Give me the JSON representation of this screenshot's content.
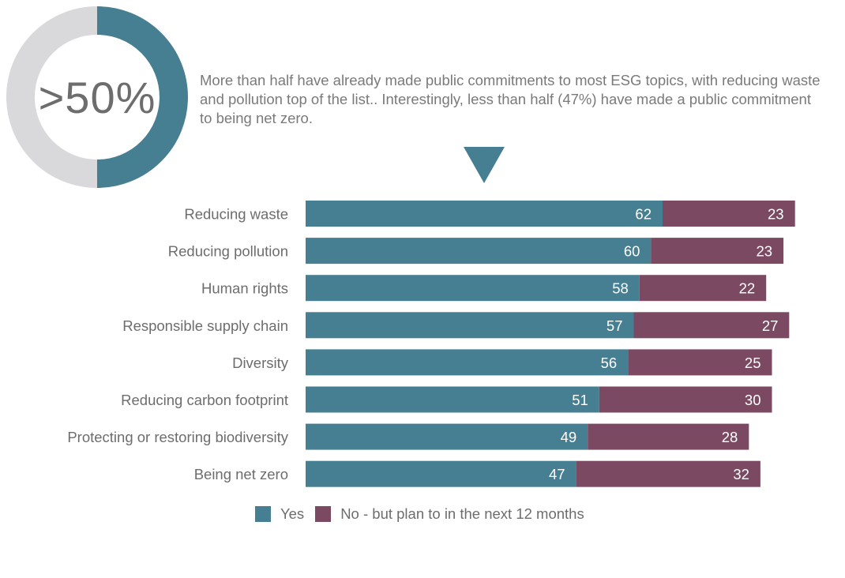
{
  "headline": {
    "stat": ">50%",
    "stat_fraction": 0.5,
    "text": "More than half have already made public commitments to most ESG topics, with reducing waste and pollution top of the list.. Interestingly, less than half (47%) have made a public commitment to being net zero."
  },
  "colors": {
    "yes": "#467e92",
    "no": "#7b4a62",
    "donut_track": "#d9d9db",
    "label_text": "#6d6d6d"
  },
  "chart_data": {
    "type": "bar",
    "orientation": "horizontal",
    "stacked": true,
    "categories": [
      "Reducing waste",
      "Reducing pollution",
      "Human rights",
      "Responsible supply chain",
      "Diversity",
      "Reducing carbon footprint",
      "Protecting or restoring biodiversity",
      "Being net zero"
    ],
    "series": [
      {
        "name": "Yes",
        "values": [
          62,
          60,
          58,
          57,
          56,
          51,
          49,
          47
        ]
      },
      {
        "name": "No - but plan to in the next 12 months",
        "values": [
          23,
          23,
          22,
          27,
          25,
          30,
          28,
          32
        ]
      }
    ],
    "data_labels": true,
    "grid": false,
    "legend": "bottom"
  }
}
